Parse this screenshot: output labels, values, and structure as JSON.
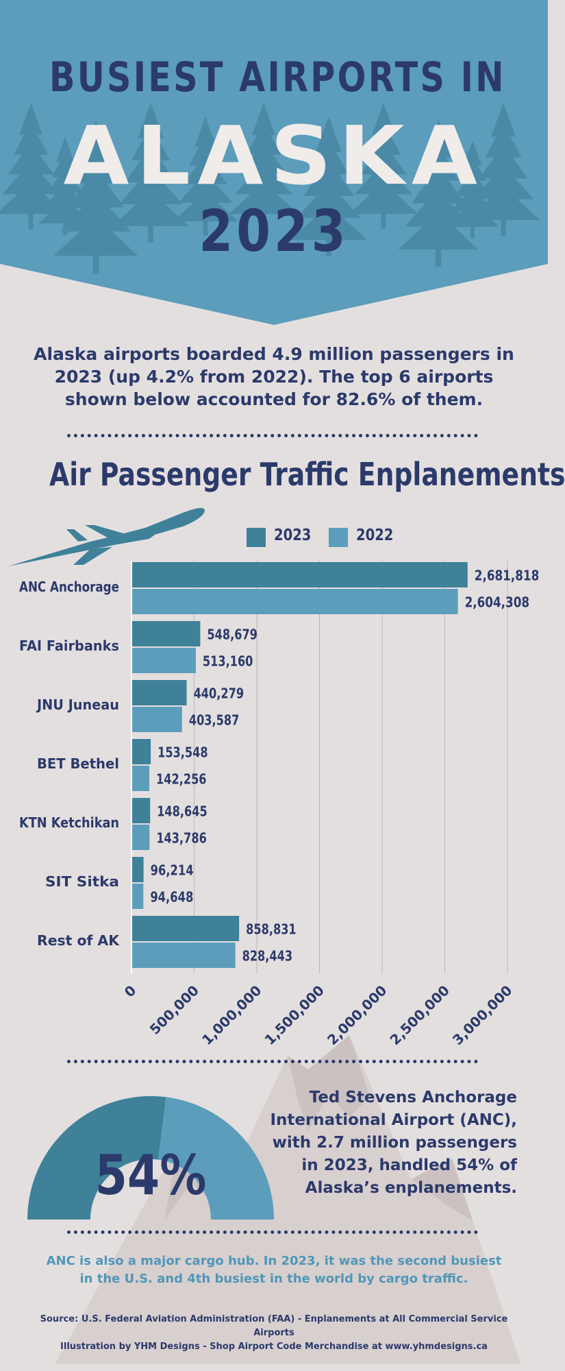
{
  "header": {
    "title_line1": "BUSIEST AIRPORTS IN",
    "title_line2": "ALASKA",
    "title_line3": "2023"
  },
  "intro": "Alaska airports boarded 4.9 million passengers in 2023 (up 4.2% from 2022). The top 6 airports shown below accounted for 82.6% of them.",
  "chart_data": {
    "type": "bar",
    "orientation": "horizontal",
    "title": "Air Passenger Traffic Enplanements",
    "categories": [
      "ANC Anchorage",
      "FAI Fairbanks",
      "JNU Juneau",
      "BET Bethel",
      "KTN Ketchikan",
      "SIT Sitka",
      "Rest of AK"
    ],
    "series": [
      {
        "name": "2023",
        "color": "#3e8199",
        "values": [
          2681818,
          548679,
          440279,
          153548,
          148645,
          96214,
          858831
        ],
        "labels": [
          "2,681,818",
          "548,679",
          "440,279",
          "153,548",
          "148,645",
          "96,214",
          "858,831"
        ]
      },
      {
        "name": "2022",
        "color": "#5b9dbb",
        "values": [
          2604308,
          513160,
          403587,
          142256,
          143786,
          94648,
          828443
        ],
        "labels": [
          "2,604,308",
          "513,160",
          "403,587",
          "142,256",
          "143,786",
          "94,648",
          "828,443"
        ]
      }
    ],
    "xlim": [
      0,
      3000000
    ],
    "x_ticks": [
      0,
      500000,
      1000000,
      1500000,
      2000000,
      2500000,
      3000000
    ],
    "x_tick_labels": [
      "0",
      "500,000",
      "1,000,000",
      "1,500,000",
      "2,000,000",
      "2,500,000",
      "3,000,000"
    ],
    "grid": "vertical",
    "legend": "top"
  },
  "gauge": {
    "value": 54,
    "label": "54%"
  },
  "anc_text": "Ted Stevens Anchorage International Airport (ANC), with 2.7 million passengers in 2023, handled 54% of Alaska’s enplanements.",
  "cargo_text": "ANC is also a major cargo hub. In 2023, it was the second busiest in the U.S. and 4th busiest in the world by cargo traffic.",
  "source_line1": "Source: U.S. Federal Aviation Administration (FAA) - Enplanements at All Commercial Service Airports",
  "source_line2": "Illustration by YHM Designs - Shop Airport Code Merchandise at www.yhmdesigns.ca",
  "colors": {
    "banner": "#5b9dbb",
    "navy": "#2b3a6b",
    "background": "#e4dfdf",
    "tree": "#4a8aa6",
    "mountain": "#cfc6c6"
  },
  "icons": [
    "pine-tree-icon",
    "airplane-icon",
    "mountain-icon"
  ]
}
